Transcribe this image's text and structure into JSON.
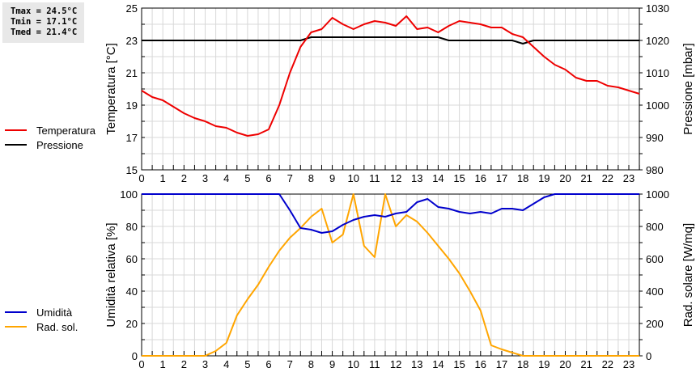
{
  "stats": {
    "tmax": "Tmax = 24.5°C",
    "tmin": "Tmin = 17.1°C",
    "tmed": "Tmed = 21.4°C"
  },
  "legend_top": [
    {
      "label": "Temperatura",
      "color": "#ee0000"
    },
    {
      "label": "Pressione",
      "color": "#000000"
    }
  ],
  "legend_bottom": [
    {
      "label": "Umidità",
      "color": "#0000cc"
    },
    {
      "label": "Rad. sol.",
      "color": "#ffa500"
    }
  ],
  "chart_data": [
    {
      "type": "line",
      "title": "",
      "xlabel": "",
      "ylabel": "Temperatura [°C]",
      "ylabel_right": "Pressione [mbar]",
      "xlim": [
        0,
        23.5
      ],
      "ylim": [
        15,
        25
      ],
      "ylim_right": [
        980,
        1030
      ],
      "x_ticks": [
        "0",
        "1",
        "2",
        "3",
        "4",
        "5",
        "6",
        "7",
        "8",
        "9",
        "10",
        "11",
        "12",
        "13",
        "14",
        "15",
        "16",
        "17",
        "18",
        "19",
        "20",
        "21",
        "22",
        "23"
      ],
      "y_ticks": [
        "15",
        "17",
        "19",
        "21",
        "23",
        "25"
      ],
      "y_ticks_right": [
        "980",
        "990",
        "1000",
        "1010",
        "1020",
        "1030"
      ],
      "grid": true,
      "legend_position": "left",
      "x": [
        0,
        0.5,
        1,
        1.5,
        2,
        2.5,
        3,
        3.5,
        4,
        4.5,
        5,
        5.5,
        6,
        6.5,
        7,
        7.5,
        8,
        8.5,
        9,
        9.5,
        10,
        10.5,
        11,
        11.5,
        12,
        12.5,
        13,
        13.5,
        14,
        14.5,
        15,
        15.5,
        16,
        16.5,
        17,
        17.5,
        18,
        18.5,
        19,
        19.5,
        20,
        20.5,
        21,
        21.5,
        22,
        22.5,
        23,
        23.5
      ],
      "series": [
        {
          "name": "Temperatura",
          "axis": "left",
          "color": "#ee0000",
          "values": [
            19.9,
            19.5,
            19.3,
            18.9,
            18.5,
            18.2,
            18.0,
            17.7,
            17.6,
            17.3,
            17.1,
            17.2,
            17.5,
            19.0,
            21.0,
            22.6,
            23.5,
            23.7,
            24.4,
            24.0,
            23.7,
            24.0,
            24.2,
            24.1,
            23.9,
            24.5,
            23.7,
            23.8,
            23.5,
            23.9,
            24.2,
            24.1,
            24.0,
            23.8,
            23.8,
            23.4,
            23.2,
            22.6,
            22.0,
            21.5,
            21.2,
            20.7,
            20.5,
            20.5,
            20.2,
            20.1,
            19.9,
            19.7
          ]
        },
        {
          "name": "Pressione",
          "axis": "right",
          "color": "#000000",
          "values": [
            1020,
            1020,
            1020,
            1020,
            1020,
            1020,
            1020,
            1020,
            1020,
            1020,
            1020,
            1020,
            1020,
            1020,
            1020,
            1020,
            1021,
            1021,
            1021,
            1021,
            1021,
            1021,
            1021,
            1021,
            1021,
            1021,
            1021,
            1021,
            1021,
            1020,
            1020,
            1020,
            1020,
            1020,
            1020,
            1020,
            1019,
            1020,
            1020,
            1020,
            1020,
            1020,
            1020,
            1020,
            1020,
            1020,
            1020,
            1020
          ]
        }
      ]
    },
    {
      "type": "line",
      "title": "",
      "xlabel": "",
      "ylabel": "Umidità relativa [%]",
      "ylabel_right": "Rad. solare [W/mq]",
      "xlim": [
        0,
        23.5
      ],
      "ylim": [
        0,
        100
      ],
      "ylim_right": [
        0,
        1000
      ],
      "x_ticks": [
        "0",
        "1",
        "2",
        "3",
        "4",
        "5",
        "6",
        "7",
        "8",
        "9",
        "10",
        "11",
        "12",
        "13",
        "14",
        "15",
        "16",
        "17",
        "18",
        "19",
        "20",
        "21",
        "22",
        "23"
      ],
      "y_ticks": [
        "0",
        "20",
        "40",
        "60",
        "80",
        "100"
      ],
      "y_ticks_right": [
        "0",
        "200",
        "400",
        "600",
        "800",
        "1000"
      ],
      "grid": true,
      "legend_position": "left",
      "x": [
        0,
        0.5,
        1,
        1.5,
        2,
        2.5,
        3,
        3.5,
        4,
        4.5,
        5,
        5.5,
        6,
        6.5,
        7,
        7.5,
        8,
        8.5,
        9,
        9.5,
        10,
        10.5,
        11,
        11.5,
        12,
        12.5,
        13,
        13.5,
        14,
        14.5,
        15,
        15.5,
        16,
        16.5,
        17,
        17.5,
        18,
        18.5,
        19,
        19.5,
        20,
        20.5,
        21,
        21.5,
        22,
        22.5,
        23,
        23.5
      ],
      "series": [
        {
          "name": "Umidità",
          "axis": "left",
          "color": "#0000cc",
          "values": [
            100,
            100,
            100,
            100,
            100,
            100,
            100,
            100,
            100,
            100,
            100,
            100,
            100,
            100,
            90,
            79,
            78,
            76,
            77,
            81,
            84,
            86,
            87,
            86,
            88,
            89,
            95,
            97,
            92,
            91,
            89,
            88,
            89,
            88,
            91,
            91,
            90,
            94,
            98,
            100,
            100,
            100,
            100,
            100,
            100,
            100,
            100,
            100
          ]
        },
        {
          "name": "Rad. sol.",
          "axis": "right",
          "color": "#ffa500",
          "values": [
            0,
            0,
            0,
            0,
            0,
            0,
            0,
            30,
            80,
            250,
            350,
            440,
            550,
            650,
            730,
            790,
            860,
            910,
            700,
            750,
            1000,
            680,
            610,
            1000,
            800,
            870,
            830,
            760,
            680,
            600,
            510,
            400,
            280,
            65,
            40,
            20,
            0,
            0,
            0,
            0,
            0,
            0,
            0,
            0,
            0,
            0,
            0,
            0
          ]
        }
      ]
    }
  ]
}
